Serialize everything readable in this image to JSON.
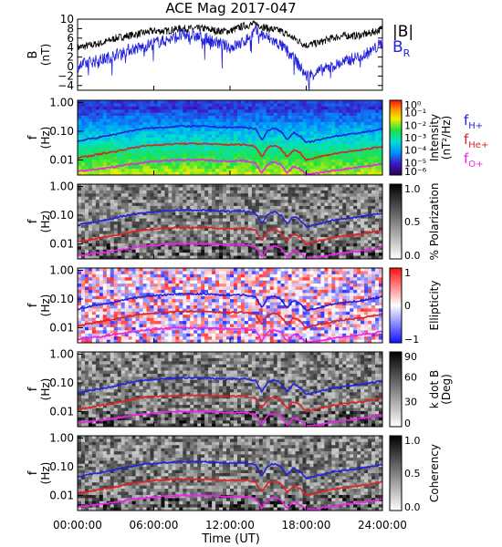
{
  "title": "ACE Mag 2017-047",
  "chart_data": [
    {
      "type": "line",
      "panel": "magnetic-field",
      "ylabel": "B",
      "yunit": "(nT)",
      "ylim": [
        -5,
        10
      ],
      "yticks": [
        -4,
        -2,
        0,
        2,
        4,
        6,
        8,
        10
      ],
      "ytick_labels": [
        "−4",
        "−2",
        "0",
        "2",
        "4",
        "6",
        "8",
        "10"
      ],
      "series": [
        {
          "name": "|B|",
          "color": "#000000",
          "x": [
            0,
            1,
            2,
            3,
            4,
            5,
            6,
            7,
            8,
            9,
            10,
            11,
            12,
            13,
            14,
            15,
            16,
            17,
            18,
            19,
            20,
            21,
            22,
            23,
            24
          ],
          "y": [
            4,
            4.5,
            5,
            6,
            6.5,
            7,
            7.5,
            7.5,
            8,
            8,
            8,
            7.5,
            7.5,
            8.5,
            9,
            8,
            7.5,
            6,
            4.5,
            5,
            6,
            6.5,
            6.5,
            7,
            8
          ]
        },
        {
          "name": "B",
          "subscript": "R",
          "color": "#2222dd",
          "x": [
            0,
            1,
            2,
            3,
            4,
            5,
            6,
            7,
            8,
            9,
            10,
            11,
            12,
            13,
            14,
            15,
            16,
            17,
            18,
            19,
            20,
            21,
            22,
            23,
            24
          ],
          "y": [
            0,
            1,
            1.5,
            2.5,
            3.5,
            4,
            5,
            5.5,
            6.5,
            6.5,
            6,
            5,
            4,
            5,
            7.5,
            6,
            4.5,
            2,
            -2,
            -1,
            0,
            1,
            2,
            3,
            5
          ]
        }
      ]
    },
    {
      "type": "heatmap",
      "panel": "intensity",
      "ylabel": "f",
      "yunit": "(Hz)",
      "ylog": true,
      "ylim": [
        0.003,
        1.2
      ],
      "yticks": [
        1,
        0.1,
        0.01
      ],
      "ytick_labels": [
        "1.00",
        "0.10",
        "0.01"
      ],
      "colorbar": {
        "label": "Intensity",
        "unit": "(nT²/Hz)",
        "scale": "rainbow",
        "ticks": [
          "10⁰",
          "10⁻¹",
          "10⁻²",
          "10⁻³",
          "10⁻⁴",
          "10⁻⁵",
          "10⁻⁶"
        ]
      },
      "legend": [
        {
          "name": "f",
          "subscript": "H+",
          "color": "#2222dd"
        },
        {
          "name": "f",
          "subscript": "He+",
          "color": "#dd2222"
        },
        {
          "name": "f",
          "subscript": "O+",
          "color": "#ee22ee"
        }
      ]
    },
    {
      "type": "heatmap",
      "panel": "polarization",
      "ylabel": "f",
      "yunit": "(Hz)",
      "ylog": true,
      "ylim": [
        0.003,
        1.2
      ],
      "yticks": [
        1,
        0.1,
        0.01
      ],
      "ytick_labels": [
        "1.00",
        "0.10",
        "0.01"
      ],
      "colorbar": {
        "label": "% Polarization",
        "unit": "",
        "scale": "gray",
        "ticks": [
          "1.0",
          "0.5",
          "0.0"
        ]
      }
    },
    {
      "type": "heatmap",
      "panel": "ellipticity",
      "ylabel": "f",
      "yunit": "(Hz)",
      "ylog": true,
      "ylim": [
        0.003,
        1.2
      ],
      "yticks": [
        1,
        0.1,
        0.01
      ],
      "ytick_labels": [
        "1.00",
        "0.10",
        "0.01"
      ],
      "colorbar": {
        "label": "Ellipticity",
        "unit": "",
        "scale": "bluewhitered",
        "ticks": [
          "1",
          "0",
          "−1"
        ]
      }
    },
    {
      "type": "heatmap",
      "panel": "kdotb",
      "ylabel": "f",
      "yunit": "(Hz)",
      "ylog": true,
      "ylim": [
        0.003,
        1.2
      ],
      "yticks": [
        1,
        0.1,
        0.01
      ],
      "ytick_labels": [
        "1.00",
        "0.10",
        "0.01"
      ],
      "colorbar": {
        "label": "k dot B",
        "unit": "(Deg)",
        "scale": "gray",
        "ticks": [
          "90",
          "60",
          "30",
          "0"
        ]
      }
    },
    {
      "type": "heatmap",
      "panel": "coherency",
      "ylabel": "f",
      "yunit": "(Hz)",
      "ylog": true,
      "ylim": [
        0.003,
        1.2
      ],
      "yticks": [
        1,
        0.1,
        0.01
      ],
      "ytick_labels": [
        "1.00",
        "0.10",
        "0.01"
      ],
      "colorbar": {
        "label": "Coherency",
        "unit": "",
        "scale": "gray",
        "ticks": [
          "1.0",
          "0.5",
          "0.0"
        ]
      }
    }
  ],
  "gyrofrequencies": {
    "x": [
      0,
      1,
      2,
      3,
      4,
      5,
      6,
      7,
      8,
      9,
      10,
      11,
      12,
      13,
      14,
      14.5,
      15,
      15.5,
      16,
      16.5,
      17,
      17.5,
      18,
      19,
      20,
      21,
      22,
      23,
      24
    ],
    "H+": [
      0.045,
      0.055,
      0.065,
      0.08,
      0.1,
      0.12,
      0.13,
      0.14,
      0.15,
      0.15,
      0.15,
      0.14,
      0.135,
      0.14,
      0.12,
      0.05,
      0.11,
      0.13,
      0.1,
      0.05,
      0.09,
      0.07,
      0.04,
      0.05,
      0.065,
      0.075,
      0.085,
      0.1,
      0.12
    ],
    "He+": [
      0.012,
      0.014,
      0.017,
      0.02,
      0.025,
      0.03,
      0.033,
      0.035,
      0.037,
      0.037,
      0.037,
      0.035,
      0.034,
      0.035,
      0.03,
      0.013,
      0.028,
      0.033,
      0.025,
      0.013,
      0.022,
      0.018,
      0.01,
      0.013,
      0.016,
      0.019,
      0.021,
      0.025,
      0.03
    ],
    "O+": [
      0.004,
      0.0045,
      0.005,
      0.006,
      0.007,
      0.008,
      0.009,
      0.0095,
      0.01,
      0.01,
      0.01,
      0.0095,
      0.009,
      0.0095,
      0.008,
      0.0035,
      0.0075,
      0.0085,
      0.007,
      0.0035,
      0.006,
      0.005,
      0.0032,
      0.0035,
      0.0042,
      0.0048,
      0.0055,
      0.0062,
      0.0075
    ]
  },
  "xaxis": {
    "label": "Time (UT)",
    "ticks": [
      0,
      6,
      12,
      18,
      24
    ],
    "tick_labels": [
      "00:00:00",
      "06:00:00",
      "12:00:00",
      "18:00:00",
      "24:00:00"
    ],
    "xlim": [
      0,
      24
    ]
  }
}
